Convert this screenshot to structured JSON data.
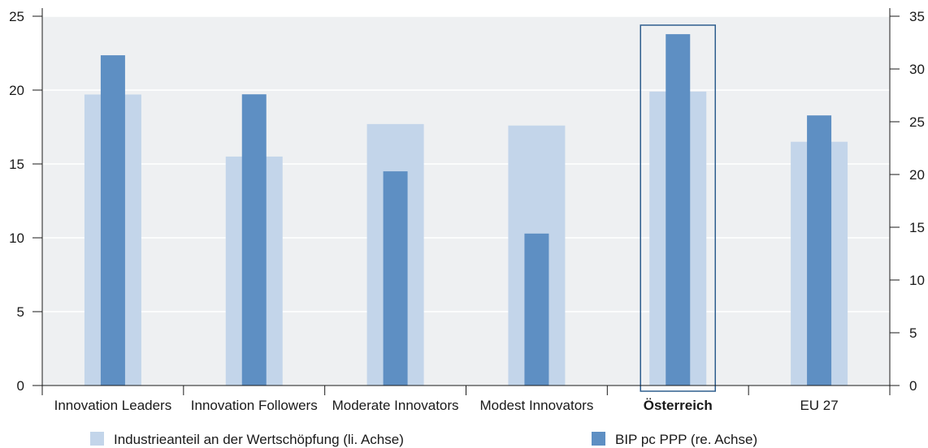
{
  "chart_data": {
    "type": "bar",
    "categories": [
      "Innovation Leaders",
      "Innovation Followers",
      "Moderate Innovators",
      "Modest Innovators",
      "Österreich",
      "EU 27"
    ],
    "highlight_category": "Österreich",
    "series": [
      {
        "name": "Industrieanteil an der Wertschöpfung (li. Achse)",
        "axis": "left",
        "color": "#c3d5ea",
        "values": [
          19.7,
          15.5,
          17.7,
          17.6,
          19.9,
          16.5
        ]
      },
      {
        "name": "BIP pc PPP (re. Achse)",
        "axis": "right",
        "color": "#5e8fc3",
        "values": [
          31.3,
          27.6,
          20.3,
          14.4,
          33.3,
          25.6
        ]
      }
    ],
    "left_axis": {
      "min": 0,
      "max": 25,
      "ticks": [
        "0",
        "5",
        "10",
        "15",
        "20",
        "25"
      ]
    },
    "right_axis": {
      "min": 0,
      "max": 35,
      "ticks": [
        "0",
        "5",
        "10",
        "15",
        "20",
        "25",
        "30",
        "35"
      ]
    },
    "grid": true,
    "legend_position": "bottom",
    "plot_background": "#eef0f2",
    "highlight_color": "#2f5e8e"
  }
}
